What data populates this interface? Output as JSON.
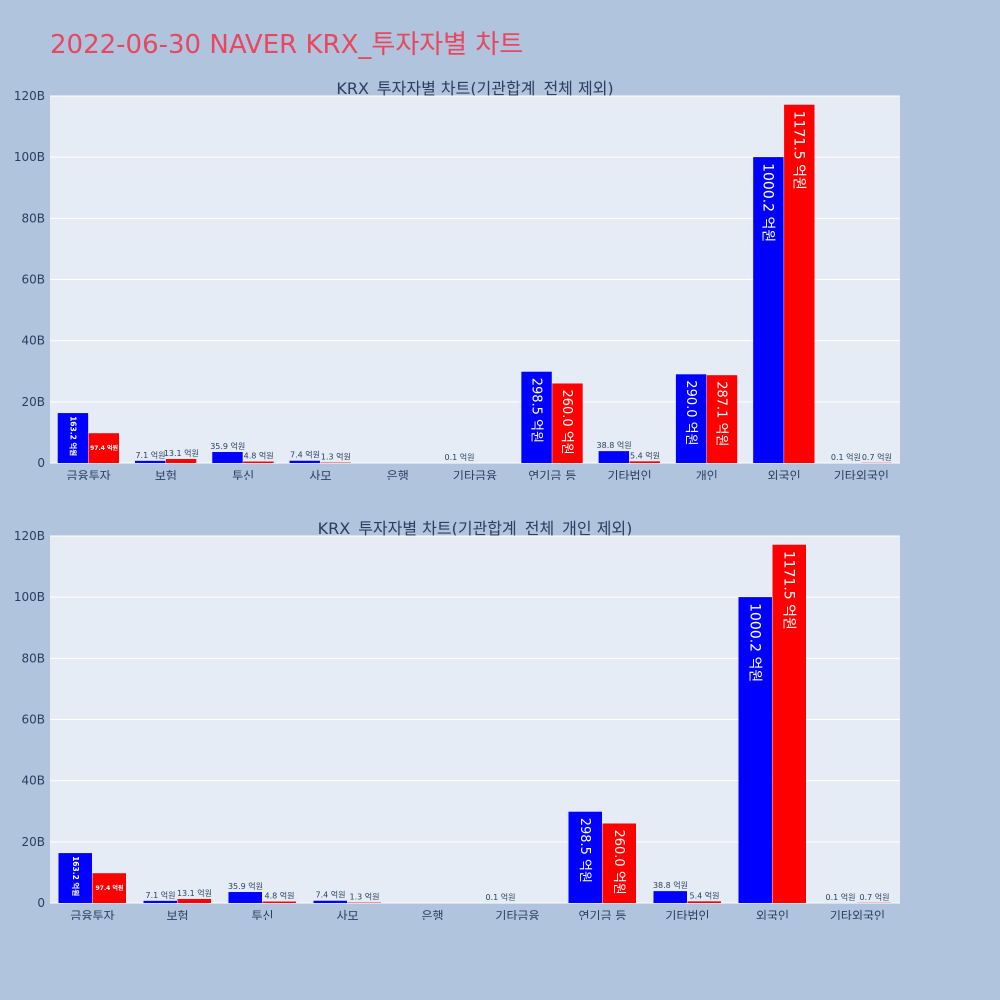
{
  "title": "2022-06-30 NAVER KRX_투자자별 차트",
  "colors": {
    "buy": "#0000ff",
    "sell": "#ff0000",
    "title": "#e8475f",
    "plot_bg": "#e5ecf6",
    "page_bg": "#b0c4de"
  },
  "chart_data": [
    {
      "type": "bar",
      "title": "KRX_투자자별 차트(기관합계_전체 제외)",
      "categories": [
        "금융투자",
        "보험",
        "투신",
        "사모",
        "은행",
        "기타금융",
        "연기금 등",
        "기타법인",
        "개인",
        "외국인",
        "기타외국인"
      ],
      "series": [
        {
          "values": [
            16.32,
            0.71,
            3.59,
            0.74,
            0,
            0.01,
            29.85,
            3.88,
            29.0,
            100.02,
            0.01
          ],
          "labels": [
            "163.2 억원",
            "7.1 억원",
            "35.9 억원",
            "7.4 억원",
            "",
            "0.1 억원",
            "298.5 억원",
            "38.8 억원",
            "290.0 억원",
            "1000.2 억원",
            "0.1 억원"
          ]
        },
        {
          "values": [
            9.74,
            1.31,
            0.48,
            0.13,
            0,
            0,
            26.0,
            0.54,
            28.71,
            117.15,
            0.07
          ],
          "labels": [
            "97.4 억원",
            "13.1 억원",
            "4.8 억원",
            "1.3 억원",
            "",
            "",
            "260.0 억원",
            "5.4 억원",
            "287.1 억원",
            "1171.5 억원",
            "0.7 억원"
          ]
        }
      ],
      "ylim": [
        0,
        120
      ],
      "yticks": [
        0,
        20,
        40,
        60,
        80,
        100,
        120
      ],
      "ytick_labels": [
        "0",
        "20B",
        "40B",
        "60B",
        "80B",
        "100B",
        "120B"
      ],
      "grid": true
    },
    {
      "type": "bar",
      "title": "KRX_투자자별 차트(기관합계_전체_개인 제외)",
      "categories": [
        "금융투자",
        "보험",
        "투신",
        "사모",
        "은행",
        "기타금융",
        "연기금 등",
        "기타법인",
        "외국인",
        "기타외국인"
      ],
      "series": [
        {
          "values": [
            16.32,
            0.71,
            3.59,
            0.74,
            0,
            0.01,
            29.85,
            3.88,
            100.02,
            0.01
          ],
          "labels": [
            "163.2 억원",
            "7.1 억원",
            "35.9 억원",
            "7.4 억원",
            "",
            "0.1 억원",
            "298.5 억원",
            "38.8 억원",
            "1000.2 억원",
            "0.1 억원"
          ]
        },
        {
          "values": [
            9.74,
            1.31,
            0.48,
            0.13,
            0,
            0,
            26.0,
            0.54,
            117.15,
            0.07
          ],
          "labels": [
            "97.4 억원",
            "13.1 억원",
            "4.8 억원",
            "1.3 억원",
            "",
            "",
            "260.0 억원",
            "5.4 억원",
            "1171.5 억원",
            "0.7 억원"
          ]
        }
      ],
      "ylim": [
        0,
        120
      ],
      "yticks": [
        0,
        20,
        40,
        60,
        80,
        100,
        120
      ],
      "ytick_labels": [
        "0",
        "20B",
        "40B",
        "60B",
        "80B",
        "100B",
        "120B"
      ],
      "grid": true
    }
  ]
}
